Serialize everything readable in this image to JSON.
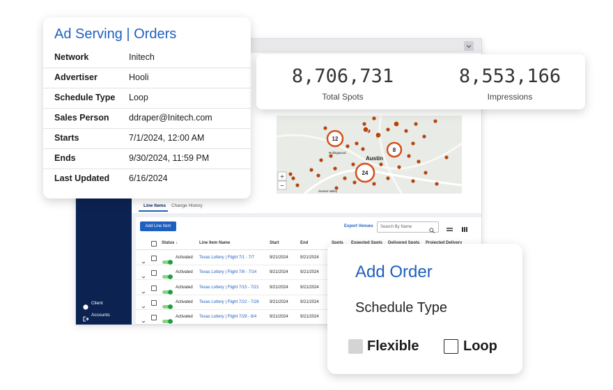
{
  "order_card": {
    "title": "Ad Serving | Orders",
    "rows": [
      [
        "Network",
        "Initech"
      ],
      [
        "Advertiser",
        "Hooli"
      ],
      [
        "Schedule Type",
        "Loop"
      ],
      [
        "Sales Person",
        "ddraper@Initech.com"
      ],
      [
        "Starts",
        "7/1/2024, 12:00 AM"
      ],
      [
        "Ends",
        "9/30/2024, 11:59 PM"
      ],
      [
        "Last Updated",
        "6/16/2024"
      ]
    ]
  },
  "stats": [
    {
      "value": "8,706,731",
      "label": "Total Spots"
    },
    {
      "value": "8,553,166",
      "label": "Impressions"
    }
  ],
  "map": {
    "clusters": [
      "12",
      "8",
      "24"
    ],
    "places": [
      "Austin",
      "Rollingwood",
      "Sunset Valley"
    ],
    "zoom": [
      "+",
      "−"
    ]
  },
  "sidebar": [
    "Client",
    "Accounts"
  ],
  "tabs": [
    "Line Items",
    "Change History"
  ],
  "toolbar": {
    "add_button": "Add Line Item",
    "export": "Export Venues",
    "search_placeholder": "Search By Name"
  },
  "table": {
    "columns": [
      "Status ↓",
      "Line Item Name",
      "Start",
      "End",
      "Spots",
      "Expected Spots",
      "Delivered Spots",
      "Projected Delivery"
    ],
    "rows": [
      [
        "Activated",
        "Texas Lottery | Flight 7/1 - 7/7",
        "9/21/2024",
        "9/21/2024"
      ],
      [
        "Activated",
        "Texas Lottery | Flight 7/8 - 7/14",
        "9/21/2024",
        "9/21/2024"
      ],
      [
        "Activated",
        "Texas Lottery | Flight 7/15 - 7/21",
        "9/21/2024",
        "9/21/2024"
      ],
      [
        "Activated",
        "Texas Lottery | Flight 7/22 - 7/28",
        "9/21/2024",
        "9/21/2024"
      ],
      [
        "Activated",
        "Texas Lottery | Flight 7/29 - 8/4",
        "9/21/2024",
        "9/21/2024"
      ]
    ]
  },
  "add_order": {
    "title": "Add Order",
    "subtitle": "Schedule Type",
    "options": [
      "Flexible",
      "Loop"
    ]
  }
}
